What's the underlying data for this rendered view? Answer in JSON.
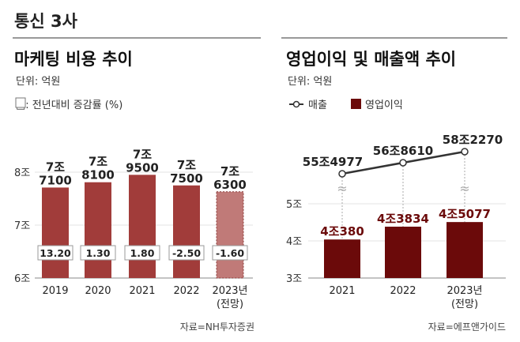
{
  "header": {
    "title": "통신 3사"
  },
  "chart_data": [
    {
      "type": "bar",
      "title": "마케팅 비용 추이",
      "unit": "단위: 억원",
      "legend": "□: 전년대비 증감률 (%)",
      "categories": [
        "2019",
        "2020",
        "2021",
        "2022",
        "2023년 (전망)"
      ],
      "values": [
        77100,
        78100,
        79500,
        77500,
        76300
      ],
      "value_labels": [
        [
          "7조",
          "7100"
        ],
        [
          "7조",
          "8100"
        ],
        [
          "7조",
          "9500"
        ],
        [
          "7조",
          "7500"
        ],
        [
          "7조",
          "6300"
        ]
      ],
      "growth_rates": [
        "13.20",
        "1.30",
        "1.80",
        "-2.50",
        "-1.60"
      ],
      "ylim": [
        60000,
        80000
      ],
      "yticks": [
        {
          "v": 80000,
          "label": "8조"
        },
        {
          "v": 70000,
          "label": "7조"
        },
        {
          "v": 60000,
          "label": "6조"
        }
      ],
      "forecast_last": true,
      "colors": {
        "bar": "#a13c3a",
        "forecast": "#c07a78"
      },
      "source": "자료=NH투자증권"
    },
    {
      "type": "bar+line",
      "title": "영업이익 및 매출액 추이",
      "unit": "단위: 억원",
      "legend": [
        "매출",
        "영업이익"
      ],
      "categories": [
        "2021",
        "2022",
        "2023년 (전망)"
      ],
      "operating_profit": [
        40380,
        43834,
        45077
      ],
      "operating_profit_labels": [
        "4조380",
        "4조3834",
        "4조5077"
      ],
      "revenue": [
        554977,
        568610,
        582270
      ],
      "revenue_labels": [
        "55조4977",
        "56조8610",
        "58조2270"
      ],
      "ylim": [
        30000,
        50000
      ],
      "yticks": [
        {
          "v": 50000,
          "label": "5조"
        },
        {
          "v": 40000,
          "label": "4조"
        },
        {
          "v": 30000,
          "label": "3조"
        }
      ],
      "axis_break": true,
      "colors": {
        "bar": "#6b0a0a",
        "line": "#333333"
      },
      "source": "자료=에프앤가이드"
    }
  ]
}
